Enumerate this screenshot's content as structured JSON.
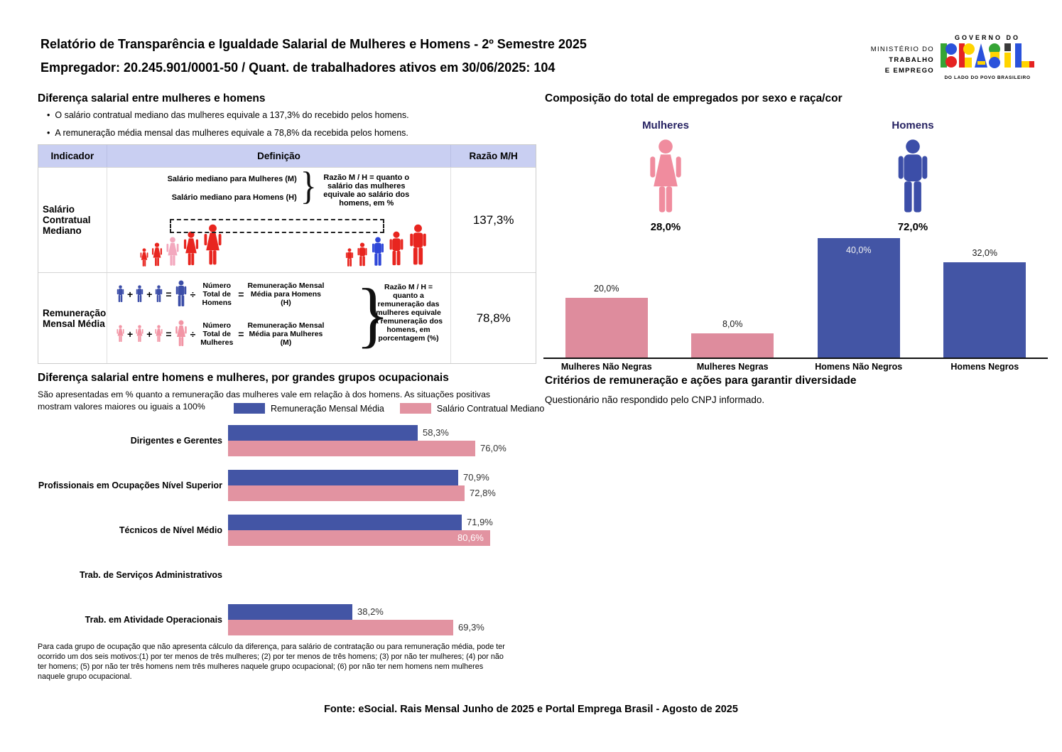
{
  "header": {
    "title": "Relatório de Transparência e Igualdade Salarial de Mulheres e Homens - 2º Semestre 2025",
    "subtitle": "Empregador: 20.245.901/0001-50 / Quant. de trabalhadores ativos em 30/06/2025: 104",
    "ministry": {
      "line1": "MINISTÉRIO DO",
      "line2": "TRABALHO",
      "line3": "E EMPREGO"
    },
    "gov_logo": {
      "top": "GOVERNO DO",
      "word": "BRASIL",
      "bottom": "DO LADO DO POVO BRASILEIRO"
    }
  },
  "salary_diff": {
    "title": "Diferença salarial entre mulheres e homens",
    "bullets": [
      "O salário contratual mediano das mulheres equivale a 137,3% do recebido pelos homens.",
      "A remuneração média mensal das mulheres equivale a 78,8% da recebida pelos homens."
    ],
    "table": {
      "headers": [
        "Indicador",
        "Definição",
        "Razão M/H"
      ],
      "rows": [
        {
          "indicator": "Salário Contratual Mediano",
          "line_women": "Salário mediano para Mulheres (M)",
          "line_men": "Salário mediano para Homens (H)",
          "note": "Razão M / H = quanto o salário das mulheres equivale ao salário dos homens, em %",
          "ratio": "137,3%"
        },
        {
          "indicator": "Remuneração Mensal Média",
          "men_divide_label": "Número Total de Homens",
          "men_result_label": "Remuneração Mensal Média para Homens (H)",
          "women_divide_label": "Número Total de Mulheres",
          "women_result_label": "Remuneração Mensal Média para Mulheres (M)",
          "note": "Razão M / H = quanto a remuneração das mulheres equivale à remuneração dos homens, em porcentagem (%)",
          "ratio": "78,8%"
        }
      ]
    }
  },
  "composition": {
    "title": "Composição do total de empregados por sexo e raça/cor",
    "women_label": "Mulheres",
    "women_pct": "28,0%",
    "men_label": "Homens",
    "men_pct": "72,0%"
  },
  "occupational": {
    "title": "Diferença salarial entre homens e mulheres, por grandes grupos ocupacionais",
    "subtitle": "São apresentadas em % quanto a remuneração das mulheres vale em relação à dos homens. As situações positivas mostram valores maiores ou iguais a 100%",
    "legend": [
      "Remuneração Mensal Média",
      "Salário Contratual Mediano"
    ],
    "footnote": "Para cada grupo de ocupação que não apresenta cálculo da diferença, para salário de contratação ou para remuneração média, pode ter ocorrido um dos seis motivos:(1) por ter menos de três mulheres; (2) por ter menos de três homens; (3) por não ter mulheres; (4) por não ter homens; (5) por não ter três homens nem três mulheres naquele grupo ocupacional; (6) por não ter nem homens nem mulheres naquele grupo ocupacional."
  },
  "criteria": {
    "title": "Critérios de remuneração e ações para garantir diversidade",
    "text": "Questionário não respondido pelo CNPJ informado."
  },
  "footer": "Fonte: eSocial. Rais Mensal Junho de 2025 e Portal Emprega Brasil - Agosto de 2025",
  "colors": {
    "table_header_bg": "#C9CFF2",
    "bar_blue": "#4355A5",
    "bar_pink": "#DE8C9D",
    "icon_pink": "#F08C9E",
    "icon_blue": "#3C4EA8",
    "figure_red": "#E8251F",
    "figure_highlight_pink": "#F3A8BE",
    "figure_highlight_blue": "#2E46D8",
    "navy_label": "#262262"
  },
  "chart_data": [
    {
      "type": "bar",
      "title": "Composição do total de empregados por sexo e raça/cor",
      "categories": [
        "Mulheres Não Negras",
        "Mulheres Negras",
        "Homens Não Negros",
        "Homens Negros"
      ],
      "values": [
        20.0,
        8.0,
        40.0,
        32.0
      ],
      "labels": [
        "20,0%",
        "8,0%",
        "40,0%",
        "32,0%"
      ],
      "colors": [
        "#DE8C9D",
        "#DE8C9D",
        "#4355A5",
        "#4355A5"
      ],
      "label_inside": [
        false,
        false,
        true,
        false
      ],
      "ylim": [
        0,
        42
      ],
      "grid": false,
      "extra": {
        "women_share": 28.0,
        "men_share": 72.0
      }
    },
    {
      "type": "bar",
      "orientation": "horizontal",
      "title": "Diferença salarial entre homens e mulheres, por grandes grupos ocupacionais",
      "categories": [
        "Dirigentes e Gerentes",
        "Profissionais em Ocupações Nível Superior",
        "Técnicos de Nível Médio",
        "Trab. de Serviços Administrativos",
        "Trab. em Atividade Operacionais"
      ],
      "series": [
        {
          "name": "Remuneração Mensal Média",
          "color": "#4355A5",
          "values": [
            58.3,
            70.9,
            71.9,
            null,
            38.2
          ],
          "labels": [
            "58,3%",
            "70,9%",
            "71,9%",
            "",
            "38,2%"
          ],
          "label_inside": [
            false,
            false,
            false,
            false,
            false
          ]
        },
        {
          "name": "Salário Contratual Mediano",
          "color": "#E293A1",
          "values": [
            76.0,
            72.8,
            80.6,
            null,
            69.3
          ],
          "labels": [
            "76,0%",
            "72,8%",
            "80,6%",
            "",
            "69,3%"
          ],
          "label_inside": [
            false,
            false,
            true,
            false,
            false
          ]
        }
      ],
      "xlim": [
        0,
        82
      ],
      "legend_position": "top",
      "grid": false
    }
  ]
}
